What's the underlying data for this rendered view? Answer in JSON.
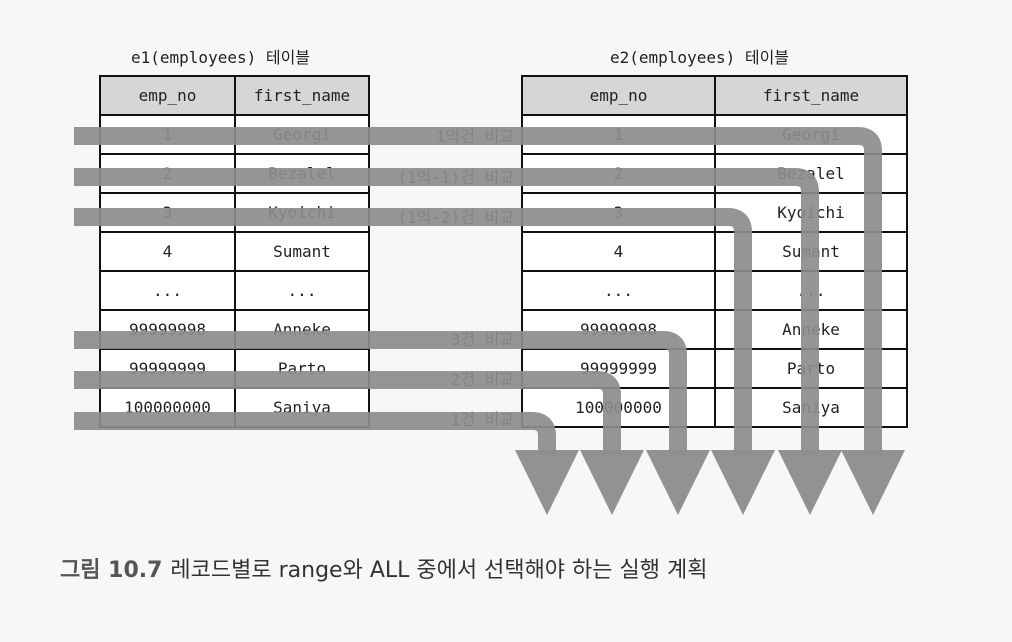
{
  "table1": {
    "caption": "e1(employees) 테이블",
    "headers": [
      "emp_no",
      "first_name"
    ],
    "rows": [
      [
        "1",
        "Georgi"
      ],
      [
        "2",
        "Bezalel"
      ],
      [
        "3",
        "Kyoichi"
      ],
      [
        "4",
        "Sumant"
      ],
      [
        "...",
        "..."
      ],
      [
        "99999998",
        "Anneke"
      ],
      [
        "99999999",
        "Parto"
      ],
      [
        "100000000",
        "Saniya"
      ]
    ]
  },
  "table2": {
    "caption": "e2(employees) 테이블",
    "headers": [
      "emp_no",
      "first_name"
    ],
    "rows": [
      [
        "1",
        "Georgi"
      ],
      [
        "2",
        "Bezalel"
      ],
      [
        "3",
        "Kyoichi"
      ],
      [
        "4",
        "Sumant"
      ],
      [
        "...",
        "..."
      ],
      [
        "99999998",
        "Anneke"
      ],
      [
        "99999999",
        "Parto"
      ],
      [
        "100000000",
        "Saniya"
      ]
    ]
  },
  "comparisons": [
    {
      "row": 0,
      "label": "1억건 비교"
    },
    {
      "row": 1,
      "label": "(1억-1)건 비교"
    },
    {
      "row": 2,
      "label": "(1억-2)건 비교"
    },
    {
      "row": 5,
      "label": "3건 비교"
    },
    {
      "row": 6,
      "label": "2건 비교"
    },
    {
      "row": 7,
      "label": "1건 비교"
    }
  ],
  "figure_caption": {
    "label": "그림 10.7",
    "text": "레코드별로 range와 ALL 중에서 선택해야 하는 실행 계획"
  },
  "colors": {
    "arrow": "#8c8c8c",
    "header_bg": "#d6d6d6",
    "border": "#111111"
  }
}
